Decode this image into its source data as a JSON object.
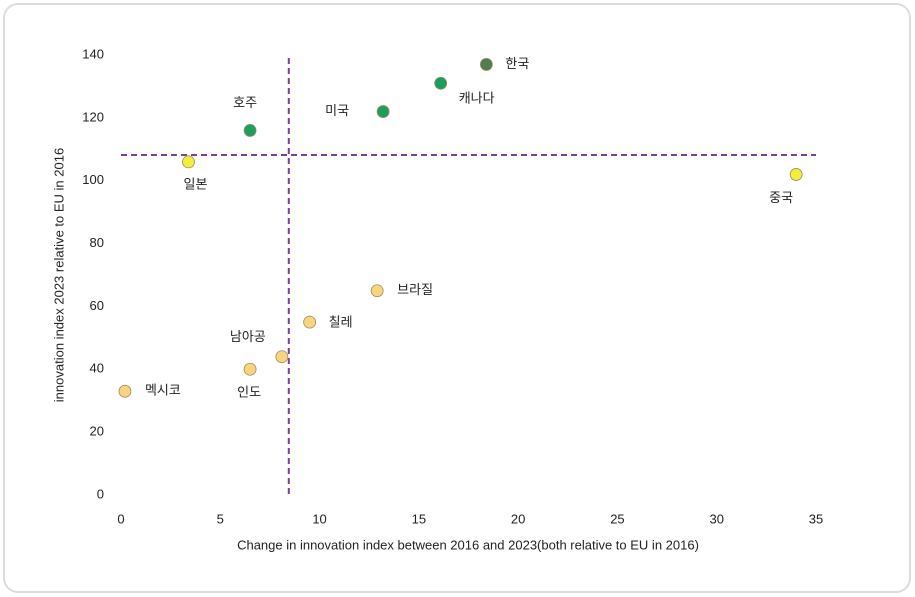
{
  "chart_data": {
    "type": "scatter",
    "x_label": "Change in innovation index between 2016 and 2023(both relative to EU in 2016)",
    "y_label": "innovation index 2023 relative to EU in 2016",
    "labels": [
      "한국",
      "캐나다",
      "미국",
      "호주",
      "일본",
      "중국",
      "브라질",
      "칠레",
      "남아공",
      "인도",
      "멕시코"
    ],
    "x": [
      18.4,
      16.1,
      13.2,
      6.5,
      3.4,
      34,
      12.9,
      9.5,
      8.1,
      6.5,
      0.2
    ],
    "values": [
      137,
      131,
      122,
      116,
      106,
      102,
      65,
      55,
      44,
      40,
      33
    ],
    "colors": [
      "#4e7d4e",
      "#1aa05c",
      "#1aa05c",
      "#1aa05c",
      "#f3ee3a",
      "#f3ee3a",
      "#f7d57e",
      "#f7d57e",
      "#f7d57e",
      "#f7d57e",
      "#f7d57e"
    ],
    "reference_x": 8.45,
    "reference_y": 108.2,
    "reference_color": "#7b3fa0",
    "xlim": [
      0,
      35
    ],
    "xticks": [
      0,
      5,
      10,
      15,
      20,
      25,
      30,
      35
    ],
    "ylim": [
      0,
      140
    ],
    "yticks": [
      0,
      20,
      40,
      60,
      80,
      100,
      120,
      140
    ]
  }
}
